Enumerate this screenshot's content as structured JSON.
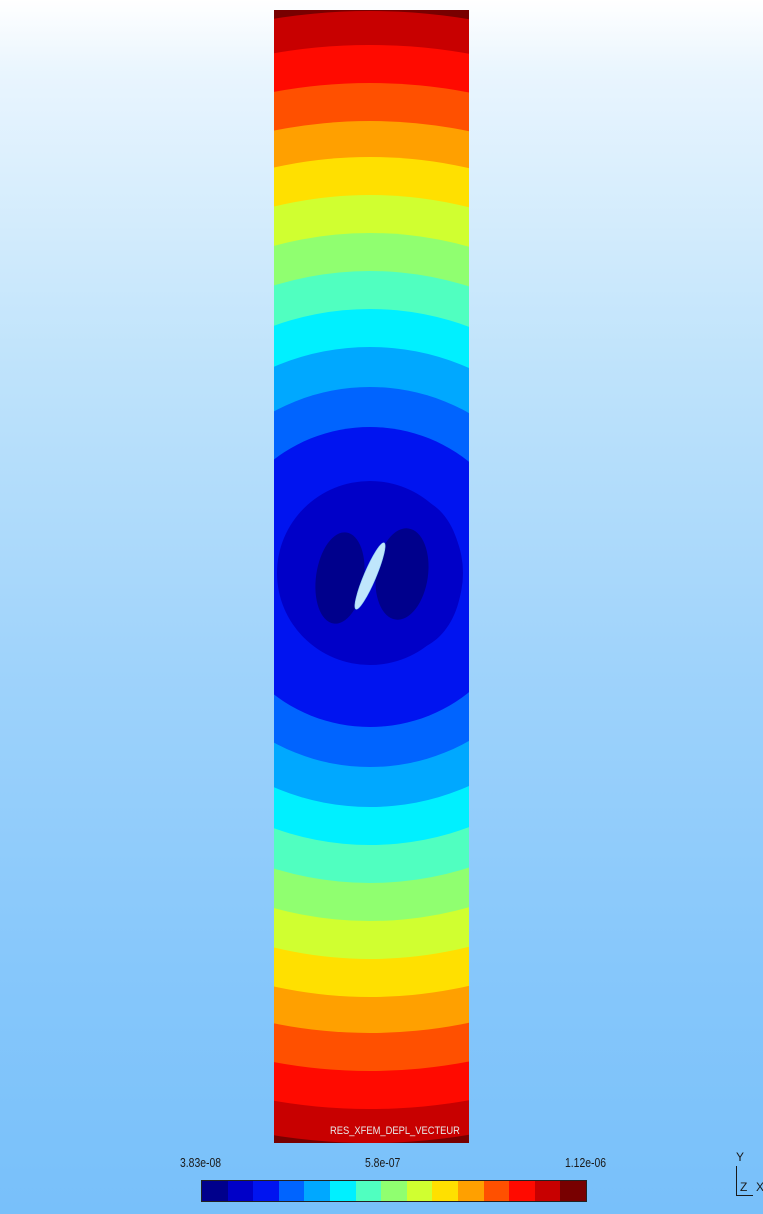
{
  "field_name": "RES_XFEM_DEPL_VECTEUR",
  "scalar_bar": {
    "min_label": "3.83e-08",
    "mid_label": "5.8e-07",
    "max_label": "1.12e-06",
    "colors": [
      "#00008c",
      "#0000c8",
      "#0014f0",
      "#0064ff",
      "#00a8ff",
      "#00f0ff",
      "#50ffc0",
      "#90ff70",
      "#d0ff30",
      "#ffe000",
      "#ffa000",
      "#ff5000",
      "#ff0a00",
      "#c80000",
      "#780000"
    ]
  },
  "axes": {
    "y": "Y",
    "z": "Z",
    "x": "X"
  }
}
